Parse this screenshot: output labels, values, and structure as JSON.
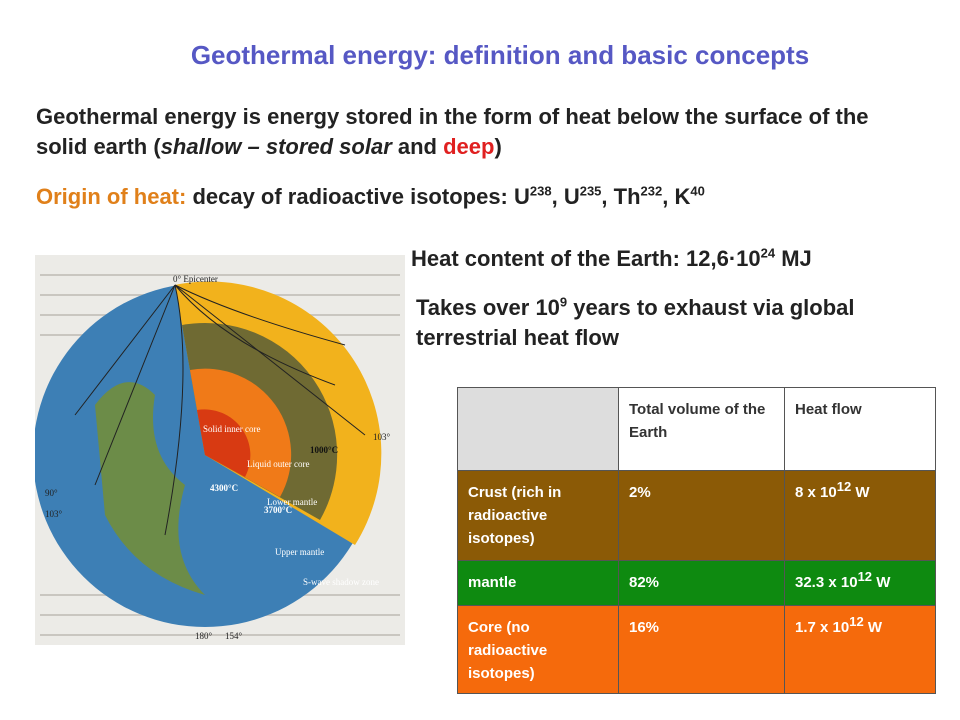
{
  "title": "Geothermal energy: definition and basic concepts",
  "definition": {
    "text": "Geothermal energy is energy stored in the form of heat below the surface of the solid earth (",
    "shallow": "shallow – stored solar",
    "and": " and ",
    "deep": "deep",
    "close": ")"
  },
  "origin": {
    "label": "Origin of heat:",
    "text": " decay of radioactive isotopes: ",
    "separator": ", ",
    "isotopes": [
      {
        "symbol": "U",
        "mass": "238"
      },
      {
        "symbol": "U",
        "mass": "235"
      },
      {
        "symbol": "Th",
        "mass": "232"
      },
      {
        "symbol": "K",
        "mass": "40"
      }
    ]
  },
  "heat_content": {
    "text": "Heat content of the Earth: 12,6·10",
    "exponent": "24",
    "unit": " MJ"
  },
  "exhaust": {
    "text": "Takes over 10",
    "exponent": "9",
    "rest": " years to exhaust via global terrestrial heat flow"
  },
  "figure": {
    "labels": [
      "0° Epicenter",
      "103°",
      "90°",
      "103°",
      "180°",
      "154°",
      "Solid inner core",
      "Liquid outer core",
      "Lower mantle",
      "Upper mantle",
      "S-wave shadow zone"
    ],
    "temperatures": [
      "1000°C",
      "4300°C",
      "3700°C"
    ]
  },
  "table": {
    "header": [
      "Total volume of the Earth",
      "Heat flow"
    ],
    "rows": [
      {
        "label": "Crust (rich in radioactive isotopes)",
        "volume": "2%",
        "heat": {
          "base": "8 x 10",
          "exp": "12",
          "unit": " W"
        }
      },
      {
        "label": "mantle",
        "volume": "82%",
        "heat": {
          "base": "32.3 x 10",
          "exp": "12",
          "unit": " W"
        }
      },
      {
        "label": "Core (no radioactive isotopes)",
        "volume": "16%",
        "heat": {
          "base": "1.7 x 10",
          "exp": "12",
          "unit": " W"
        }
      }
    ]
  }
}
